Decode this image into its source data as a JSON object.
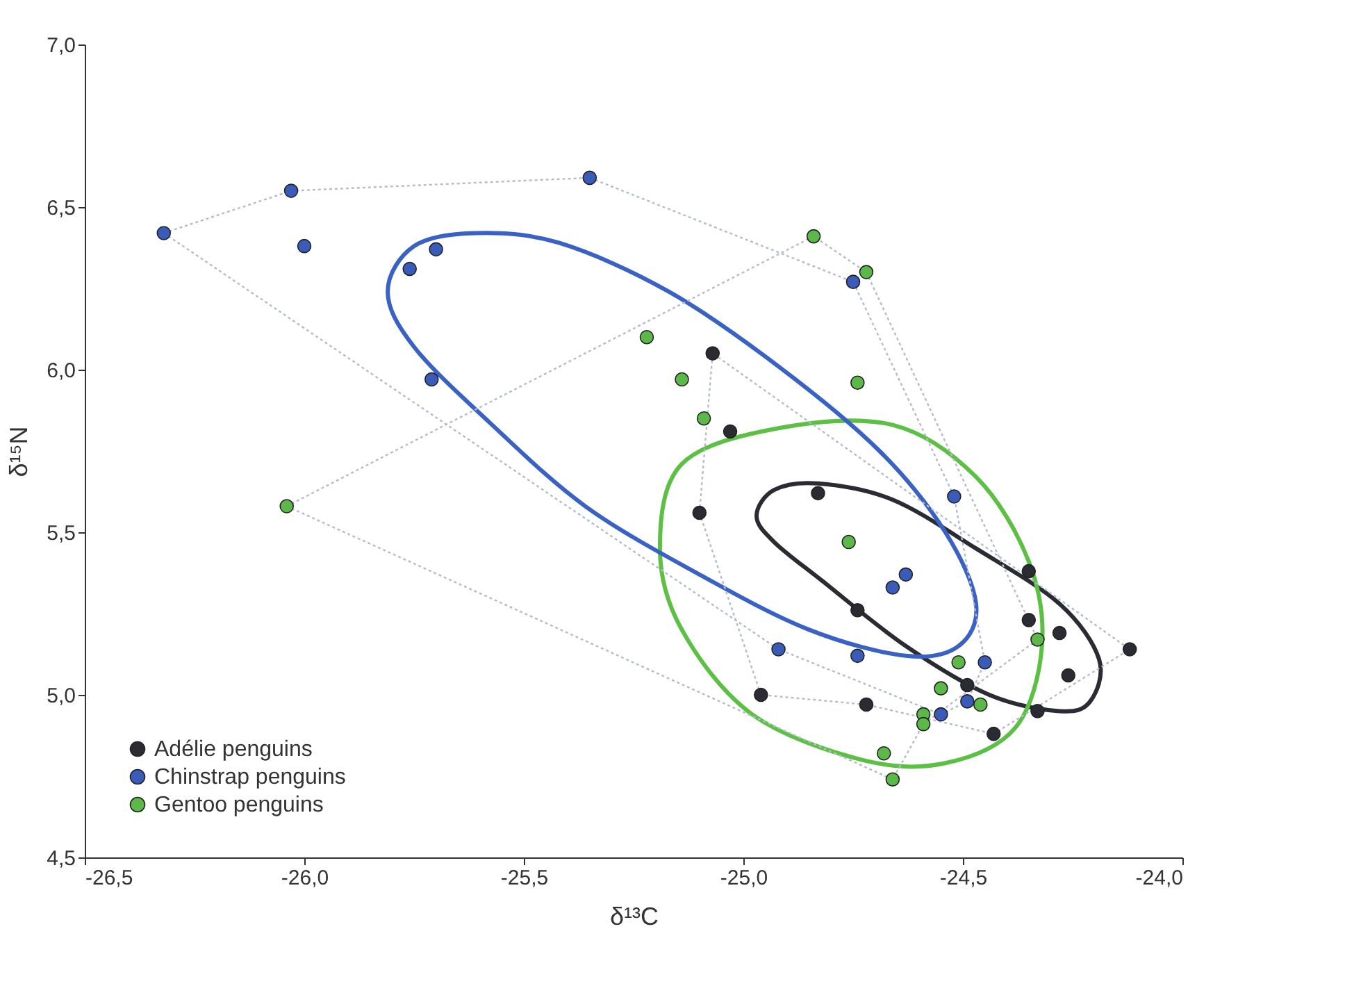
{
  "chart_data": {
    "type": "scatter",
    "xlabel": "δ¹³C",
    "ylabel": "δ¹⁵N",
    "xlim": [
      -26.5,
      -24.0
    ],
    "ylim": [
      4.5,
      7.0
    ],
    "xticks": [
      {
        "value": -26.5,
        "label": "-26,5"
      },
      {
        "value": -26.0,
        "label": "-26,0"
      },
      {
        "value": -25.5,
        "label": "-25,5"
      },
      {
        "value": -25.0,
        "label": "-25,0"
      },
      {
        "value": -24.5,
        "label": "-24,5"
      },
      {
        "value": -24.0,
        "label": "-24,0"
      }
    ],
    "yticks": [
      {
        "value": 4.5,
        "label": "4,5"
      },
      {
        "value": 5.0,
        "label": "5,0"
      },
      {
        "value": 5.5,
        "label": "5,5"
      },
      {
        "value": 6.0,
        "label": "6,0"
      },
      {
        "value": 6.5,
        "label": "6,5"
      },
      {
        "value": 7.0,
        "label": "7,0"
      }
    ],
    "grid": false,
    "legend": "bottom left",
    "series": [
      {
        "type": "line",
        "marker": "none",
        "line_style": "dotted",
        "color": "#b4bccb",
        "x": [
          -26.32,
          -26.03,
          -25.35,
          -24.75,
          -24.52,
          -24.45
        ],
        "values": [
          6.42,
          6.55,
          6.59,
          6.27,
          5.61,
          5.1
        ]
      },
      {
        "type": "line",
        "marker": "none",
        "line_style": "dotted",
        "color": "#b4bccb",
        "x": [
          -26.32,
          -24.92,
          -24.55,
          -24.49,
          -24.45
        ],
        "values": [
          6.42,
          5.14,
          4.94,
          4.98,
          5.1
        ]
      },
      {
        "type": "line",
        "marker": "none",
        "line_style": "dotted",
        "color": "#b4bccb",
        "x": [
          -26.04,
          -24.84,
          -24.72,
          -24.33
        ],
        "values": [
          5.58,
          6.41,
          6.3,
          5.17
        ]
      },
      {
        "type": "line",
        "marker": "none",
        "line_style": "dotted",
        "color": "#b4bccb",
        "x": [
          -26.04,
          -24.66,
          -24.59,
          -24.33
        ],
        "values": [
          5.58,
          4.74,
          4.91,
          5.17
        ]
      },
      {
        "type": "line",
        "marker": "none",
        "line_style": "dotted",
        "color": "#b4bccb",
        "x": [
          -25.1,
          -25.07,
          -24.12
        ],
        "values": [
          5.56,
          6.05,
          5.14
        ]
      },
      {
        "type": "line",
        "marker": "none",
        "line_style": "dotted",
        "color": "#b4bccb",
        "x": [
          -25.1,
          -24.96,
          -24.72,
          -24.43,
          -24.12
        ],
        "values": [
          5.56,
          5.0,
          4.97,
          4.88,
          5.14
        ]
      },
      {
        "type": "scatter",
        "marker": "circle",
        "name": "Adélie penguins",
        "color": "#2b2b33",
        "x": [
          -25.07,
          -25.03,
          -24.83,
          -25.1,
          -24.74,
          -24.35,
          -24.35,
          -24.28,
          -24.12,
          -24.26,
          -24.49,
          -24.72,
          -24.96,
          -24.33,
          -24.43
        ],
        "values": [
          6.05,
          5.81,
          5.62,
          5.56,
          5.26,
          5.38,
          5.23,
          5.19,
          5.14,
          5.06,
          5.03,
          4.97,
          5.0,
          4.95,
          4.88
        ]
      },
      {
        "type": "scatter",
        "marker": "circle",
        "name": "Chinstrap penguins",
        "color": "#3a5bb8",
        "x": [
          -26.32,
          -26.03,
          -25.35,
          -26.0,
          -25.76,
          -25.7,
          -25.71,
          -24.75,
          -24.52,
          -24.63,
          -24.66,
          -24.92,
          -24.74,
          -24.45,
          -24.49,
          -24.55
        ],
        "values": [
          6.42,
          6.55,
          6.59,
          6.38,
          6.31,
          6.37,
          5.97,
          6.27,
          5.61,
          5.37,
          5.33,
          5.14,
          5.12,
          5.1,
          4.98,
          4.94
        ]
      },
      {
        "type": "scatter",
        "marker": "circle",
        "name": "Gentoo penguins",
        "color": "#5cb848",
        "x": [
          -24.84,
          -24.72,
          -25.22,
          -25.14,
          -24.74,
          -25.09,
          -24.76,
          -26.04,
          -24.51,
          -24.33,
          -24.55,
          -24.46,
          -24.59,
          -24.59,
          -24.68,
          -24.66
        ],
        "values": [
          6.41,
          6.3,
          6.1,
          5.97,
          5.96,
          5.85,
          5.47,
          5.58,
          5.1,
          5.17,
          5.02,
          4.97,
          4.94,
          4.91,
          4.82,
          4.74
        ]
      }
    ]
  }
}
